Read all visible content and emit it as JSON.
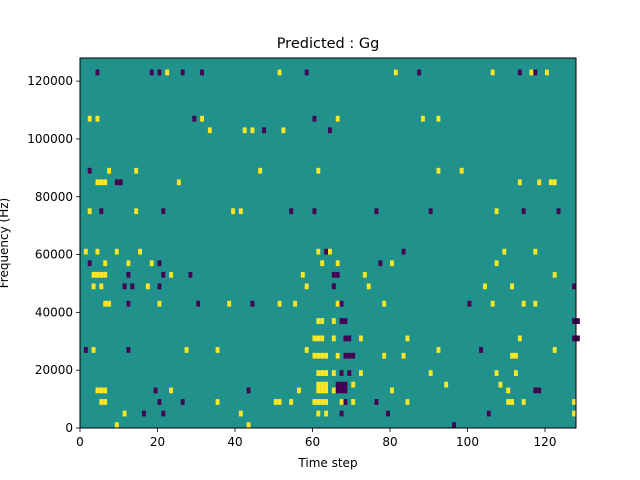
{
  "chart_data": {
    "type": "heatmap",
    "title": "Predicted : Gg",
    "xlabel": "Time step",
    "ylabel": "Frequency (Hz)",
    "xlim": [
      0,
      128
    ],
    "ylim": [
      0,
      128000
    ],
    "xticks": [
      0,
      20,
      40,
      60,
      80,
      100,
      120
    ],
    "xtick_labels": [
      "0",
      "20",
      "40",
      "60",
      "80",
      "100",
      "120"
    ],
    "yticks": [
      0,
      20000,
      40000,
      60000,
      80000,
      100000,
      120000
    ],
    "ytick_labels": [
      "0",
      "20000",
      "40000",
      "60000",
      "80000",
      "100000",
      "120000"
    ],
    "colormap": "viridis",
    "value_levels": [
      -1,
      0,
      1
    ],
    "colors": {
      "low": "#440154",
      "mid": "#21918c",
      "high": "#fde725"
    },
    "background_value": 0,
    "row_height_hz": 2000,
    "column_width_steps": 1,
    "cells": [
      [
        4,
        85000,
        1
      ],
      [
        5,
        85000,
        1
      ],
      [
        6,
        85000,
        1
      ],
      [
        9,
        85000,
        -1
      ],
      [
        10,
        85000,
        -1
      ],
      [
        25,
        85000,
        1
      ],
      [
        113,
        85000,
        1
      ],
      [
        118,
        85000,
        1
      ],
      [
        121,
        85000,
        1
      ],
      [
        122,
        85000,
        1
      ],
      [
        3,
        53000,
        1
      ],
      [
        4,
        53000,
        1
      ],
      [
        5,
        53000,
        1
      ],
      [
        6,
        53000,
        1
      ],
      [
        12,
        53000,
        -1
      ],
      [
        21,
        53000,
        -1
      ],
      [
        23,
        53000,
        1
      ],
      [
        28,
        53000,
        -1
      ],
      [
        57,
        53000,
        1
      ],
      [
        65,
        53000,
        -1
      ],
      [
        66,
        53000,
        -1
      ],
      [
        73,
        53000,
        1
      ],
      [
        122,
        53000,
        1
      ],
      [
        6,
        43000,
        1
      ],
      [
        7,
        43000,
        1
      ],
      [
        12,
        43000,
        -1
      ],
      [
        20,
        43000,
        1
      ],
      [
        30,
        43000,
        -1
      ],
      [
        38,
        43000,
        1
      ],
      [
        44,
        43000,
        -1
      ],
      [
        51,
        43000,
        1
      ],
      [
        55,
        43000,
        1
      ],
      [
        66,
        43000,
        1
      ],
      [
        67,
        43000,
        -1
      ],
      [
        78,
        43000,
        1
      ],
      [
        100,
        43000,
        -1
      ],
      [
        106,
        43000,
        1
      ],
      [
        114,
        43000,
        1
      ],
      [
        117,
        43000,
        1
      ],
      [
        61,
        37000,
        1
      ],
      [
        62,
        37000,
        1
      ],
      [
        65,
        37000,
        1
      ],
      [
        67,
        37000,
        -1
      ],
      [
        68,
        37000,
        -1
      ],
      [
        127,
        37000,
        -1
      ],
      [
        128,
        37000,
        -1
      ],
      [
        60,
        31000,
        1
      ],
      [
        61,
        31000,
        1
      ],
      [
        62,
        31000,
        1
      ],
      [
        65,
        31000,
        1
      ],
      [
        68,
        31000,
        -1
      ],
      [
        69,
        31000,
        -1
      ],
      [
        72,
        31000,
        1
      ],
      [
        84,
        31000,
        1
      ],
      [
        113,
        31000,
        1
      ],
      [
        127,
        31000,
        -1
      ],
      [
        128,
        31000,
        -1
      ],
      [
        60,
        25000,
        1
      ],
      [
        61,
        25000,
        1
      ],
      [
        62,
        25000,
        1
      ],
      [
        63,
        25000,
        1
      ],
      [
        66,
        25000,
        1
      ],
      [
        68,
        25000,
        -1
      ],
      [
        69,
        25000,
        -1
      ],
      [
        70,
        25000,
        -1
      ],
      [
        78,
        25000,
        1
      ],
      [
        83,
        25000,
        1
      ],
      [
        111,
        25000,
        1
      ],
      [
        112,
        25000,
        1
      ],
      [
        61,
        19000,
        1
      ],
      [
        62,
        19000,
        1
      ],
      [
        63,
        19000,
        1
      ],
      [
        65,
        19000,
        1
      ],
      [
        67,
        19000,
        -1
      ],
      [
        69,
        19000,
        -1
      ],
      [
        72,
        19000,
        1
      ],
      [
        90,
        19000,
        1
      ],
      [
        107,
        19000,
        1
      ],
      [
        112,
        19000,
        1
      ],
      [
        61,
        15000,
        1
      ],
      [
        62,
        15000,
        1
      ],
      [
        63,
        15000,
        1
      ],
      [
        66,
        15000,
        -1
      ],
      [
        67,
        15000,
        -1
      ],
      [
        68,
        15000,
        -1
      ],
      [
        70,
        15000,
        1
      ],
      [
        94,
        15000,
        1
      ],
      [
        108,
        15000,
        1
      ],
      [
        4,
        13000,
        1
      ],
      [
        5,
        13000,
        1
      ],
      [
        6,
        13000,
        1
      ],
      [
        19,
        13000,
        -1
      ],
      [
        23,
        13000,
        1
      ],
      [
        43,
        13000,
        -1
      ],
      [
        56,
        13000,
        1
      ],
      [
        61,
        13000,
        1
      ],
      [
        62,
        13000,
        1
      ],
      [
        63,
        13000,
        1
      ],
      [
        65,
        13000,
        1
      ],
      [
        66,
        13000,
        -1
      ],
      [
        67,
        13000,
        -1
      ],
      [
        68,
        13000,
        -1
      ],
      [
        80,
        13000,
        1
      ],
      [
        110,
        13000,
        1
      ],
      [
        117,
        13000,
        -1
      ],
      [
        118,
        13000,
        -1
      ],
      [
        5,
        9000,
        1
      ],
      [
        6,
        9000,
        1
      ],
      [
        20,
        9000,
        -1
      ],
      [
        26,
        9000,
        -1
      ],
      [
        35,
        9000,
        1
      ],
      [
        50,
        9000,
        1
      ],
      [
        51,
        9000,
        1
      ],
      [
        54,
        9000,
        1
      ],
      [
        60,
        9000,
        1
      ],
      [
        61,
        9000,
        1
      ],
      [
        62,
        9000,
        1
      ],
      [
        63,
        9000,
        1
      ],
      [
        67,
        9000,
        1
      ],
      [
        68,
        9000,
        -1
      ],
      [
        70,
        9000,
        1
      ],
      [
        76,
        9000,
        -1
      ],
      [
        84,
        9000,
        1
      ],
      [
        110,
        9000,
        1
      ],
      [
        111,
        9000,
        1
      ],
      [
        114,
        9000,
        1
      ],
      [
        127,
        9000,
        1
      ],
      [
        11,
        5000,
        1
      ],
      [
        16,
        5000,
        -1
      ],
      [
        21,
        5000,
        -1
      ],
      [
        41,
        5000,
        1
      ],
      [
        61,
        5000,
        1
      ],
      [
        63,
        5000,
        1
      ],
      [
        67,
        5000,
        -1
      ],
      [
        79,
        5000,
        -1
      ],
      [
        105,
        5000,
        -1
      ],
      [
        127,
        5000,
        1
      ],
      [
        9,
        1000,
        1
      ],
      [
        43,
        1000,
        1
      ],
      [
        96,
        1000,
        -1
      ],
      [
        4,
        123000,
        -1
      ],
      [
        18,
        123000,
        -1
      ],
      [
        20,
        123000,
        -1
      ],
      [
        22,
        123000,
        1
      ],
      [
        26,
        123000,
        -1
      ],
      [
        31,
        123000,
        -1
      ],
      [
        51,
        123000,
        1
      ],
      [
        58,
        123000,
        -1
      ],
      [
        81,
        123000,
        1
      ],
      [
        87,
        123000,
        -1
      ],
      [
        106,
        123000,
        1
      ],
      [
        113,
        123000,
        -1
      ],
      [
        116,
        123000,
        1
      ],
      [
        117,
        123000,
        -1
      ],
      [
        120,
        123000,
        1
      ],
      [
        2,
        107000,
        1
      ],
      [
        4,
        107000,
        1
      ],
      [
        29,
        107000,
        -1
      ],
      [
        31,
        107000,
        1
      ],
      [
        60,
        107000,
        -1
      ],
      [
        66,
        107000,
        1
      ],
      [
        88,
        107000,
        1
      ],
      [
        92,
        107000,
        1
      ],
      [
        42,
        103000,
        1
      ],
      [
        44,
        103000,
        1
      ],
      [
        47,
        103000,
        -1
      ],
      [
        52,
        103000,
        1
      ],
      [
        64,
        103000,
        -1
      ],
      [
        33,
        103000,
        1
      ],
      [
        2,
        89000,
        -1
      ],
      [
        7,
        89000,
        1
      ],
      [
        14,
        89000,
        1
      ],
      [
        46,
        89000,
        1
      ],
      [
        61,
        89000,
        1
      ],
      [
        92,
        89000,
        1
      ],
      [
        98,
        89000,
        1
      ],
      [
        2,
        75000,
        1
      ],
      [
        5,
        75000,
        -1
      ],
      [
        14,
        75000,
        1
      ],
      [
        21,
        75000,
        -1
      ],
      [
        39,
        75000,
        1
      ],
      [
        41,
        75000,
        1
      ],
      [
        54,
        75000,
        -1
      ],
      [
        60,
        75000,
        -1
      ],
      [
        76,
        75000,
        -1
      ],
      [
        90,
        75000,
        -1
      ],
      [
        107,
        75000,
        1
      ],
      [
        114,
        75000,
        -1
      ],
      [
        123,
        75000,
        -1
      ],
      [
        1,
        61000,
        1
      ],
      [
        4,
        61000,
        1
      ],
      [
        9,
        61000,
        1
      ],
      [
        15,
        61000,
        1
      ],
      [
        61,
        61000,
        1
      ],
      [
        63,
        61000,
        -1
      ],
      [
        64,
        61000,
        1
      ],
      [
        83,
        61000,
        -1
      ],
      [
        109,
        61000,
        1
      ],
      [
        117,
        61000,
        1
      ],
      [
        2,
        57000,
        -1
      ],
      [
        6,
        57000,
        1
      ],
      [
        12,
        57000,
        1
      ],
      [
        18,
        57000,
        1
      ],
      [
        20,
        57000,
        -1
      ],
      [
        62,
        57000,
        1
      ],
      [
        66,
        57000,
        1
      ],
      [
        77,
        57000,
        -1
      ],
      [
        80,
        57000,
        1
      ],
      [
        107,
        57000,
        1
      ],
      [
        3,
        49000,
        1
      ],
      [
        5,
        49000,
        1
      ],
      [
        11,
        49000,
        -1
      ],
      [
        13,
        49000,
        -1
      ],
      [
        17,
        49000,
        1
      ],
      [
        20,
        49000,
        -1
      ],
      [
        58,
        49000,
        1
      ],
      [
        65,
        49000,
        -1
      ],
      [
        74,
        49000,
        1
      ],
      [
        104,
        49000,
        1
      ],
      [
        111,
        49000,
        1
      ],
      [
        127,
        49000,
        -1
      ],
      [
        1,
        27000,
        -1
      ],
      [
        3,
        27000,
        1
      ],
      [
        12,
        27000,
        -1
      ],
      [
        27,
        27000,
        1
      ],
      [
        35,
        27000,
        1
      ],
      [
        58,
        27000,
        1
      ],
      [
        92,
        27000,
        1
      ],
      [
        103,
        27000,
        -1
      ],
      [
        122,
        27000,
        1
      ]
    ]
  }
}
